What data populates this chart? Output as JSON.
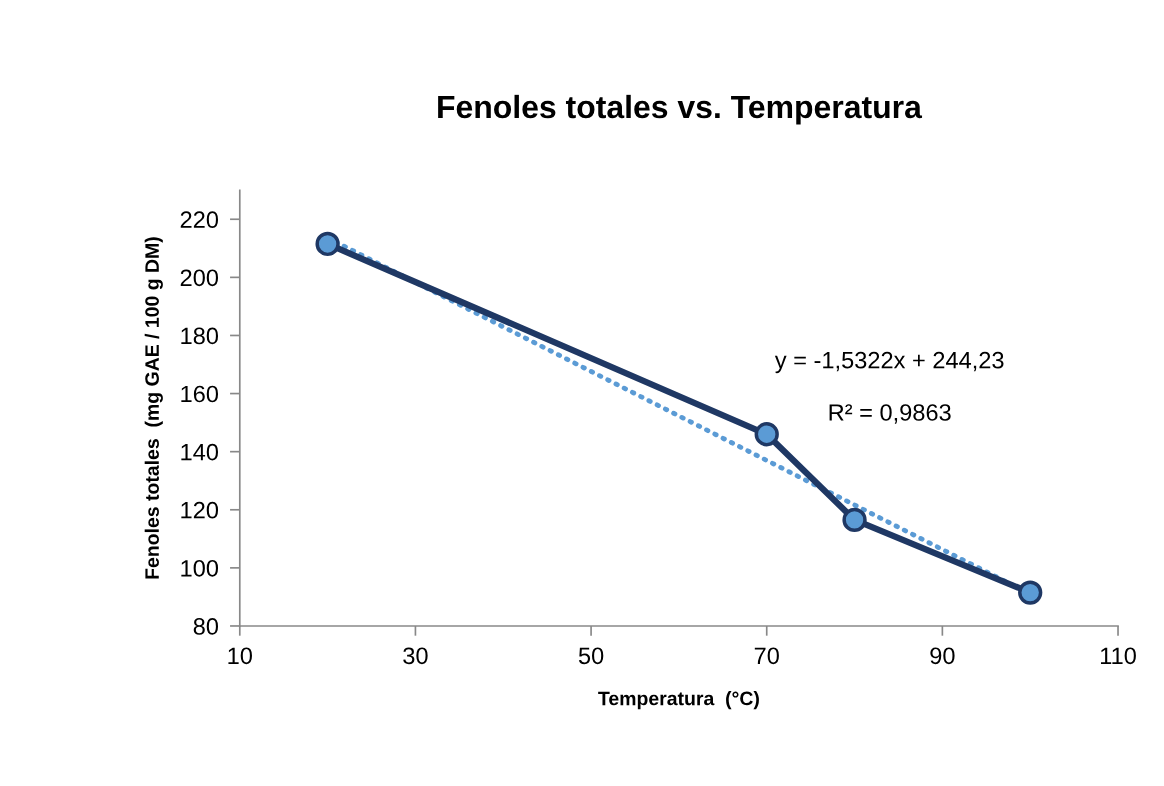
{
  "chart_data": {
    "type": "line",
    "title": "Fenoles totales vs. Temperatura",
    "xlabel": "Temperatura  (°C)",
    "ylabel": "Fenoles totales  (mg GAE / 100 g DM)",
    "x": [
      20,
      70,
      80,
      100
    ],
    "series": [
      {
        "color": "#1f3864",
        "values": [
          211.5,
          146,
          116.5,
          91.5
        ],
        "marker": "circle",
        "line_style": "solid"
      },
      {
        "type": "line",
        "color": "#5b9bd5",
        "x": [
          20,
          100
        ],
        "values": [
          213.6,
          91.0
        ],
        "marker": "none",
        "line_style": "dotted"
      }
    ],
    "annotations": [
      "y = -1,5322x + 244,23",
      "R² = 0,9863"
    ],
    "xlim": [
      10,
      110
    ],
    "xticks": [
      10,
      30,
      50,
      70,
      90,
      110
    ],
    "ylim": [
      80,
      230
    ],
    "yticks": [
      80,
      100,
      120,
      140,
      160,
      180,
      200,
      220
    ],
    "grid": false
  }
}
